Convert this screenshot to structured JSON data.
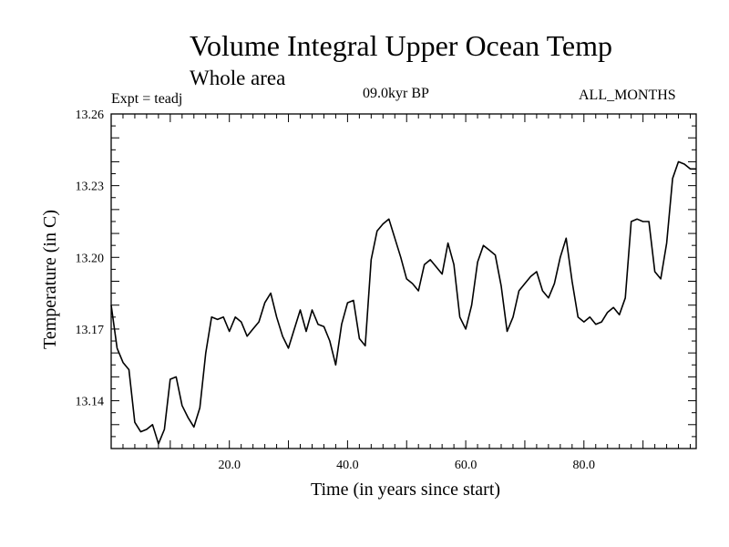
{
  "chart_data": {
    "type": "line",
    "title": "Volume Integral Upper Ocean Temp",
    "subtitle": "Whole area",
    "annotations": {
      "left": "Expt = teadj",
      "center": "09.0kyr BP",
      "right": "ALL_MONTHS"
    },
    "xlabel": "Time (in years since start)",
    "ylabel": "Temperature (in C)",
    "xlim": [
      0,
      99
    ],
    "ylim": [
      13.12,
      13.26
    ],
    "xticks": [
      20,
      40,
      60,
      80
    ],
    "xtick_labels": [
      "20.0",
      "40.0",
      "60.0",
      "80.0"
    ],
    "yticks": [
      13.14,
      13.17,
      13.2,
      13.23,
      13.26
    ],
    "ytick_labels": [
      "13.14",
      "13.17",
      "13.20",
      "13.23",
      "13.26"
    ],
    "grid": false,
    "series": [
      {
        "name": "Temperature",
        "x": [
          0,
          1,
          2,
          3,
          4,
          5,
          6,
          7,
          8,
          9,
          10,
          11,
          12,
          13,
          14,
          15,
          16,
          17,
          18,
          19,
          20,
          21,
          22,
          23,
          24,
          25,
          26,
          27,
          28,
          29,
          30,
          31,
          32,
          33,
          34,
          35,
          36,
          37,
          38,
          39,
          40,
          41,
          42,
          43,
          44,
          45,
          46,
          47,
          48,
          49,
          50,
          51,
          52,
          53,
          54,
          55,
          56,
          57,
          58,
          59,
          60,
          61,
          62,
          63,
          64,
          65,
          66,
          67,
          68,
          69,
          70,
          71,
          72,
          73,
          74,
          75,
          76,
          77,
          78,
          79,
          80,
          81,
          82,
          83,
          84,
          85,
          86,
          87,
          88,
          89,
          90,
          91,
          92,
          93,
          94,
          95,
          96,
          97,
          98,
          99
        ],
        "values": [
          13.18,
          13.162,
          13.156,
          13.153,
          13.131,
          13.127,
          13.128,
          13.13,
          13.122,
          13.128,
          13.149,
          13.15,
          13.138,
          13.133,
          13.129,
          13.137,
          13.16,
          13.175,
          13.174,
          13.175,
          13.169,
          13.175,
          13.173,
          13.167,
          13.17,
          13.173,
          13.181,
          13.185,
          13.175,
          13.167,
          13.162,
          13.17,
          13.178,
          13.169,
          13.178,
          13.172,
          13.171,
          13.165,
          13.155,
          13.172,
          13.181,
          13.182,
          13.166,
          13.163,
          13.199,
          13.211,
          13.214,
          13.216,
          13.208,
          13.2,
          13.191,
          13.189,
          13.186,
          13.197,
          13.199,
          13.196,
          13.193,
          13.206,
          13.197,
          13.175,
          13.17,
          13.18,
          13.198,
          13.205,
          13.203,
          13.201,
          13.188,
          13.169,
          13.175,
          13.186,
          13.189,
          13.192,
          13.194,
          13.186,
          13.183,
          13.189,
          13.2,
          13.208,
          13.19,
          13.175,
          13.173,
          13.175,
          13.172,
          13.173,
          13.177,
          13.179,
          13.176,
          13.183,
          13.215,
          13.216,
          13.215,
          13.215,
          13.194,
          13.191,
          13.206,
          13.233,
          13.24,
          13.239,
          13.237,
          13.237
        ]
      }
    ]
  }
}
